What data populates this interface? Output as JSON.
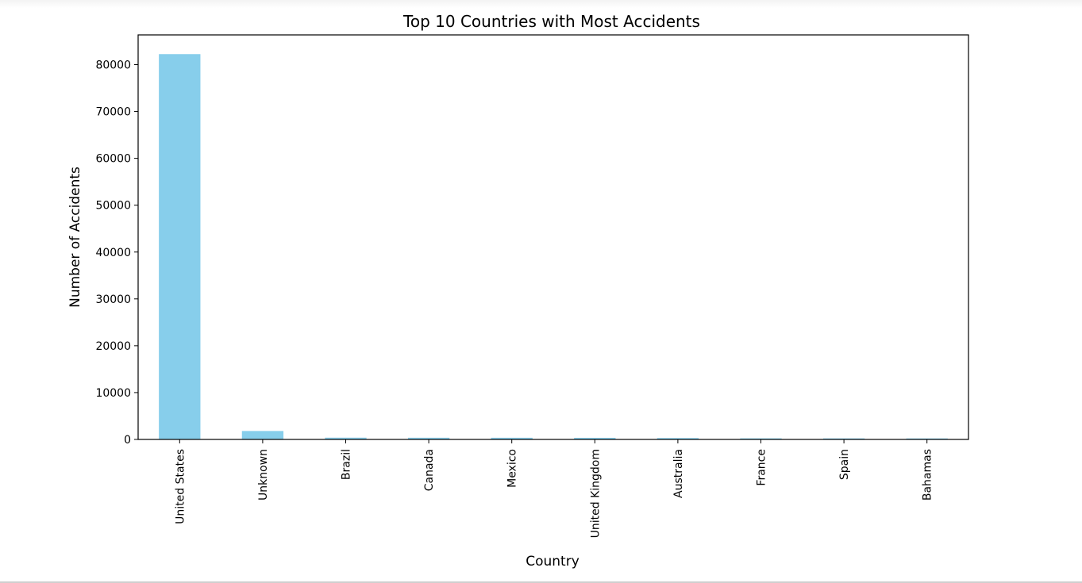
{
  "chart_data": {
    "type": "bar",
    "title": "Top 10 Countries with Most Accidents",
    "xlabel": "Country",
    "ylabel": "Number of Accidents",
    "categories": [
      "United States",
      "Unknown",
      "Brazil",
      "Canada",
      "Mexico",
      "United Kingdom",
      "Australia",
      "France",
      "Spain",
      "Bahamas"
    ],
    "values": [
      82248,
      1800,
      374,
      359,
      358,
      344,
      300,
      236,
      226,
      216
    ],
    "ylim": [
      0,
      86350
    ],
    "yticks": [
      0,
      10000,
      20000,
      30000,
      40000,
      50000,
      60000,
      70000,
      80000
    ],
    "bar_color": "#87ceeb",
    "grid": false,
    "legend": "none"
  }
}
